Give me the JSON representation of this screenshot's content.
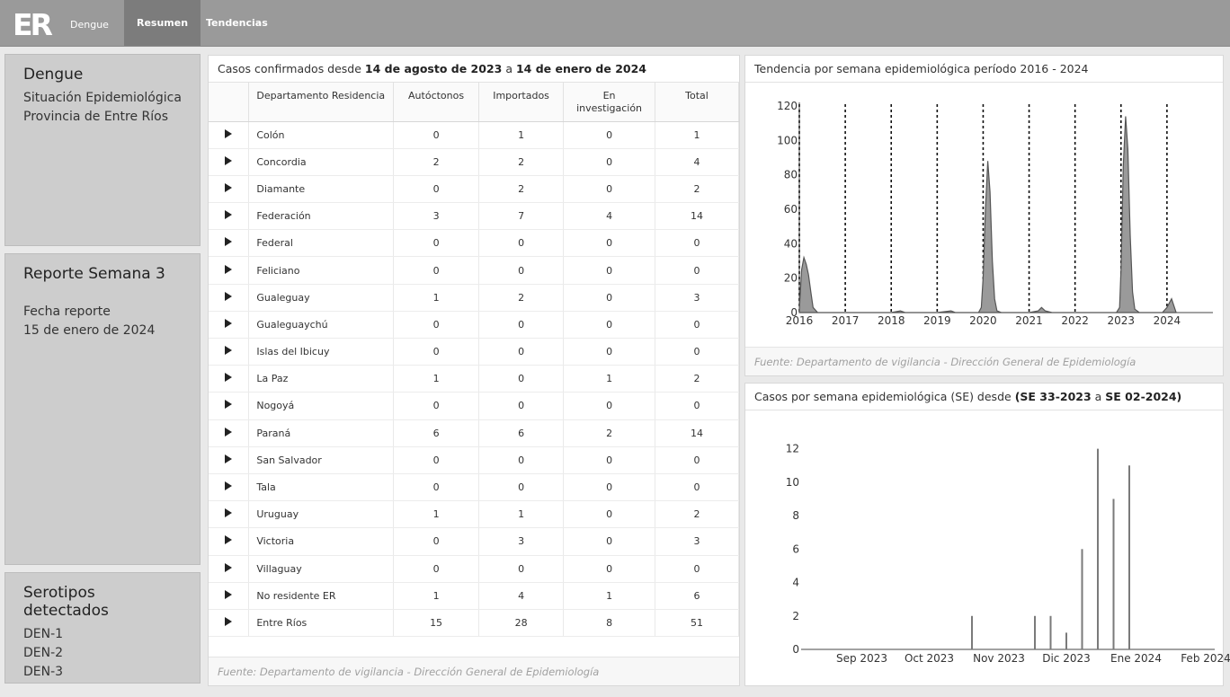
{
  "header": {
    "logo_text": "ER",
    "brand": "Dengue",
    "tabs": [
      {
        "label": "Resumen",
        "active": true
      },
      {
        "label": "Tendencias",
        "active": false
      }
    ]
  },
  "sidebar": {
    "title_panel": {
      "title": "Dengue",
      "line1": "Situación Epidemiológica",
      "line2": "Provincia de Entre Ríos"
    },
    "report_panel": {
      "title": "Reporte Semana 3",
      "date_label": "Fecha reporte",
      "date_value": "15 de enero de 2024"
    },
    "serotypes_panel": {
      "title": "Serotipos detectados",
      "items": [
        "DEN-1",
        "DEN-2",
        "DEN-3"
      ]
    }
  },
  "table_card": {
    "title_prefix": "Casos confirmados desde ",
    "date_from": "14 de agosto de 2023",
    "title_middle": " a ",
    "date_to": "14 de enero de 2024",
    "columns": [
      "Departamento Residencia",
      "Autóctonos",
      "Importados",
      "En investigación",
      "Total"
    ],
    "rows": [
      {
        "dep": "Colón",
        "aut": "0",
        "imp": "1",
        "inv": "0",
        "total": "1"
      },
      {
        "dep": "Concordia",
        "aut": "2",
        "imp": "2",
        "inv": "0",
        "total": "4"
      },
      {
        "dep": "Diamante",
        "aut": "0",
        "imp": "2",
        "inv": "0",
        "total": "2"
      },
      {
        "dep": "Federación",
        "aut": "3",
        "imp": "7",
        "inv": "4",
        "total": "14"
      },
      {
        "dep": "Federal",
        "aut": "0",
        "imp": "0",
        "inv": "0",
        "total": "0"
      },
      {
        "dep": "Feliciano",
        "aut": "0",
        "imp": "0",
        "inv": "0",
        "total": "0"
      },
      {
        "dep": "Gualeguay",
        "aut": "1",
        "imp": "2",
        "inv": "0",
        "total": "3"
      },
      {
        "dep": "Gualeguaychú",
        "aut": "0",
        "imp": "0",
        "inv": "0",
        "total": "0"
      },
      {
        "dep": "Islas del Ibicuy",
        "aut": "0",
        "imp": "0",
        "inv": "0",
        "total": "0"
      },
      {
        "dep": "La Paz",
        "aut": "1",
        "imp": "0",
        "inv": "1",
        "total": "2"
      },
      {
        "dep": "Nogoyá",
        "aut": "0",
        "imp": "0",
        "inv": "0",
        "total": "0"
      },
      {
        "dep": "Paraná",
        "aut": "6",
        "imp": "6",
        "inv": "2",
        "total": "14"
      },
      {
        "dep": "San Salvador",
        "aut": "0",
        "imp": "0",
        "inv": "0",
        "total": "0"
      },
      {
        "dep": "Tala",
        "aut": "0",
        "imp": "0",
        "inv": "0",
        "total": "0"
      },
      {
        "dep": "Uruguay",
        "aut": "1",
        "imp": "1",
        "inv": "0",
        "total": "2"
      },
      {
        "dep": "Victoria",
        "aut": "0",
        "imp": "3",
        "inv": "0",
        "total": "3"
      },
      {
        "dep": "Villaguay",
        "aut": "0",
        "imp": "0",
        "inv": "0",
        "total": "0"
      },
      {
        "dep": "No residente ER",
        "aut": "1",
        "imp": "4",
        "inv": "1",
        "total": "6"
      },
      {
        "dep": "Entre Ríos",
        "aut": "15",
        "imp": "28",
        "inv": "8",
        "total": "51"
      }
    ],
    "footer": "Fuente: Departamento de vigilancia - Dirección General de Epidemiología"
  },
  "trend_card": {
    "title": "Tendencia por semana epidemiológica período 2016 - 2024",
    "footer": "Fuente: Departamento de vigilancia - Dirección General de Epidemiología"
  },
  "weekly_card": {
    "title_prefix": "Casos por semana epidemiológica (SE) desde ",
    "title_bold": "(SE 33-2023",
    "title_middle": " a ",
    "title_bold2": "SE 02-2024)"
  },
  "colors": {
    "bar": "#7a7a7a",
    "area_fill": "#9a9a9a",
    "topbar": "#9a9a9a",
    "panel": "#cdcdcd"
  },
  "chart_data": [
    {
      "type": "area",
      "title": "Tendencia por semana epidemiológica período 2016 - 2024",
      "xlabel": "",
      "ylabel": "",
      "x_ticks": [
        "2016",
        "2017",
        "2018",
        "2019",
        "2020",
        "2021",
        "2022",
        "2023",
        "2024"
      ],
      "ylim": [
        0,
        120
      ],
      "y_ticks": [
        0,
        20,
        40,
        60,
        80,
        100,
        120
      ],
      "series": [
        {
          "x": [
            2016.0,
            2016.05,
            2016.1,
            2016.15,
            2016.2,
            2016.25,
            2016.3,
            2016.4,
            2016.5,
            2017.0,
            2018.0,
            2018.2,
            2018.3,
            2019.0,
            2019.3,
            2019.4,
            2019.9,
            2019.96,
            2020.0,
            2020.05,
            2020.1,
            2020.15,
            2020.2,
            2020.25,
            2020.3,
            2020.4,
            2021.0,
            2021.2,
            2021.27,
            2021.35,
            2021.5,
            2022.0,
            2022.9,
            2022.97,
            2023.0,
            2023.05,
            2023.1,
            2023.15,
            2023.2,
            2023.25,
            2023.3,
            2023.4,
            2023.9,
            2024.0,
            2024.1,
            2024.2
          ],
          "y": [
            2,
            25,
            32,
            28,
            22,
            12,
            3,
            0,
            0,
            0,
            0,
            1,
            0,
            0,
            1,
            0,
            0,
            3,
            20,
            60,
            88,
            70,
            30,
            8,
            1,
            0,
            0,
            1,
            3,
            1,
            0,
            0,
            0,
            3,
            25,
            85,
            114,
            95,
            45,
            12,
            2,
            0,
            0,
            3,
            8,
            0
          ]
        }
      ],
      "annotations": "vertical dashed lines at each year boundary",
      "grid": false
    },
    {
      "type": "bar",
      "title": "Casos por semana epidemiológica (SE) desde (SE 33-2023 a SE 02-2024)",
      "xlabel": "",
      "ylabel": "",
      "x_ticks": [
        "Sep 2023",
        "Oct 2023",
        "Nov 2023",
        "Dic 2023",
        "Ene 2024",
        "Feb 2024"
      ],
      "ylim": [
        0,
        13
      ],
      "y_ticks": [
        0,
        2,
        4,
        6,
        8,
        10,
        12
      ],
      "x": [
        "2023-10-29",
        "2023-11-26",
        "2023-12-03",
        "2023-12-10",
        "2023-12-17",
        "2023-12-24",
        "2023-12-31",
        "2024-01-07"
      ],
      "values": [
        2,
        2,
        2,
        1,
        6,
        12,
        9,
        11
      ],
      "grid": false
    }
  ]
}
